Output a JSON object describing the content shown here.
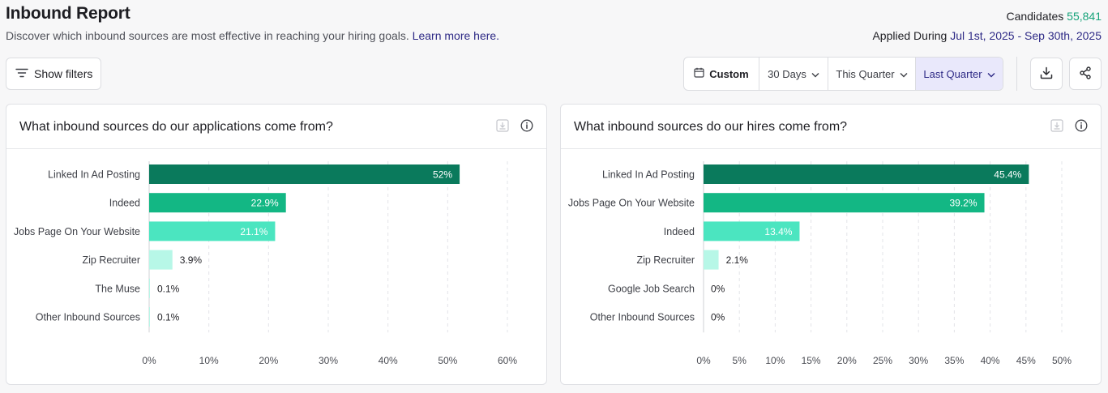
{
  "header": {
    "title": "Inbound Report",
    "subtitle": "Discover which inbound sources are most effective in reaching your hiring goals.",
    "learn_more": "Learn more here.",
    "candidates_label": "Candidates",
    "candidates_value": "55,841",
    "applied_label": "Applied During",
    "applied_value": "Jul 1st, 2025 - Sep 30th, 2025"
  },
  "toolbar": {
    "show_filters": "Show filters",
    "ranges": [
      {
        "label": "Custom",
        "active": false
      },
      {
        "label": "30 Days",
        "active": false
      },
      {
        "label": "This Quarter",
        "active": false
      },
      {
        "label": "Last Quarter",
        "active": true
      }
    ]
  },
  "colors": {
    "bar_rank1": "#0a7a5c",
    "bar_rank2": "#13b784",
    "bar_rank3": "#4be5c0",
    "bar_rank4": "#b7f7e7",
    "accent": "#2e2a86"
  },
  "cards": [
    {
      "title": "What inbound sources do our applications come from?"
    },
    {
      "title": "What inbound sources do our hires come from?"
    }
  ],
  "chart_data": [
    {
      "type": "bar",
      "orientation": "horizontal",
      "categories": [
        "Linked In Ad Posting",
        "Indeed",
        "Jobs Page On Your Website",
        "Zip Recruiter",
        "The Muse",
        "Other Inbound Sources"
      ],
      "values": [
        52,
        22.9,
        21.1,
        3.9,
        0.1,
        0.1
      ],
      "value_labels": [
        "52%",
        "22.9%",
        "21.1%",
        "3.9%",
        "0.1%",
        "0.1%"
      ],
      "xticks": [
        "0%",
        "10%",
        "20%",
        "30%",
        "40%",
        "50%",
        "60%"
      ],
      "xlim": [
        0,
        60
      ],
      "grid": true
    },
    {
      "type": "bar",
      "orientation": "horizontal",
      "categories": [
        "Linked In Ad Posting",
        "Jobs Page On Your Website",
        "Indeed",
        "Zip Recruiter",
        "Google Job Search",
        "Other Inbound Sources"
      ],
      "values": [
        45.4,
        39.2,
        13.4,
        2.1,
        0,
        0
      ],
      "value_labels": [
        "45.4%",
        "39.2%",
        "13.4%",
        "2.1%",
        "0%",
        "0%"
      ],
      "xticks": [
        "0%",
        "5%",
        "10%",
        "15%",
        "20%",
        "25%",
        "30%",
        "35%",
        "40%",
        "45%",
        "50%"
      ],
      "xlim": [
        0,
        50
      ],
      "grid": true
    }
  ]
}
